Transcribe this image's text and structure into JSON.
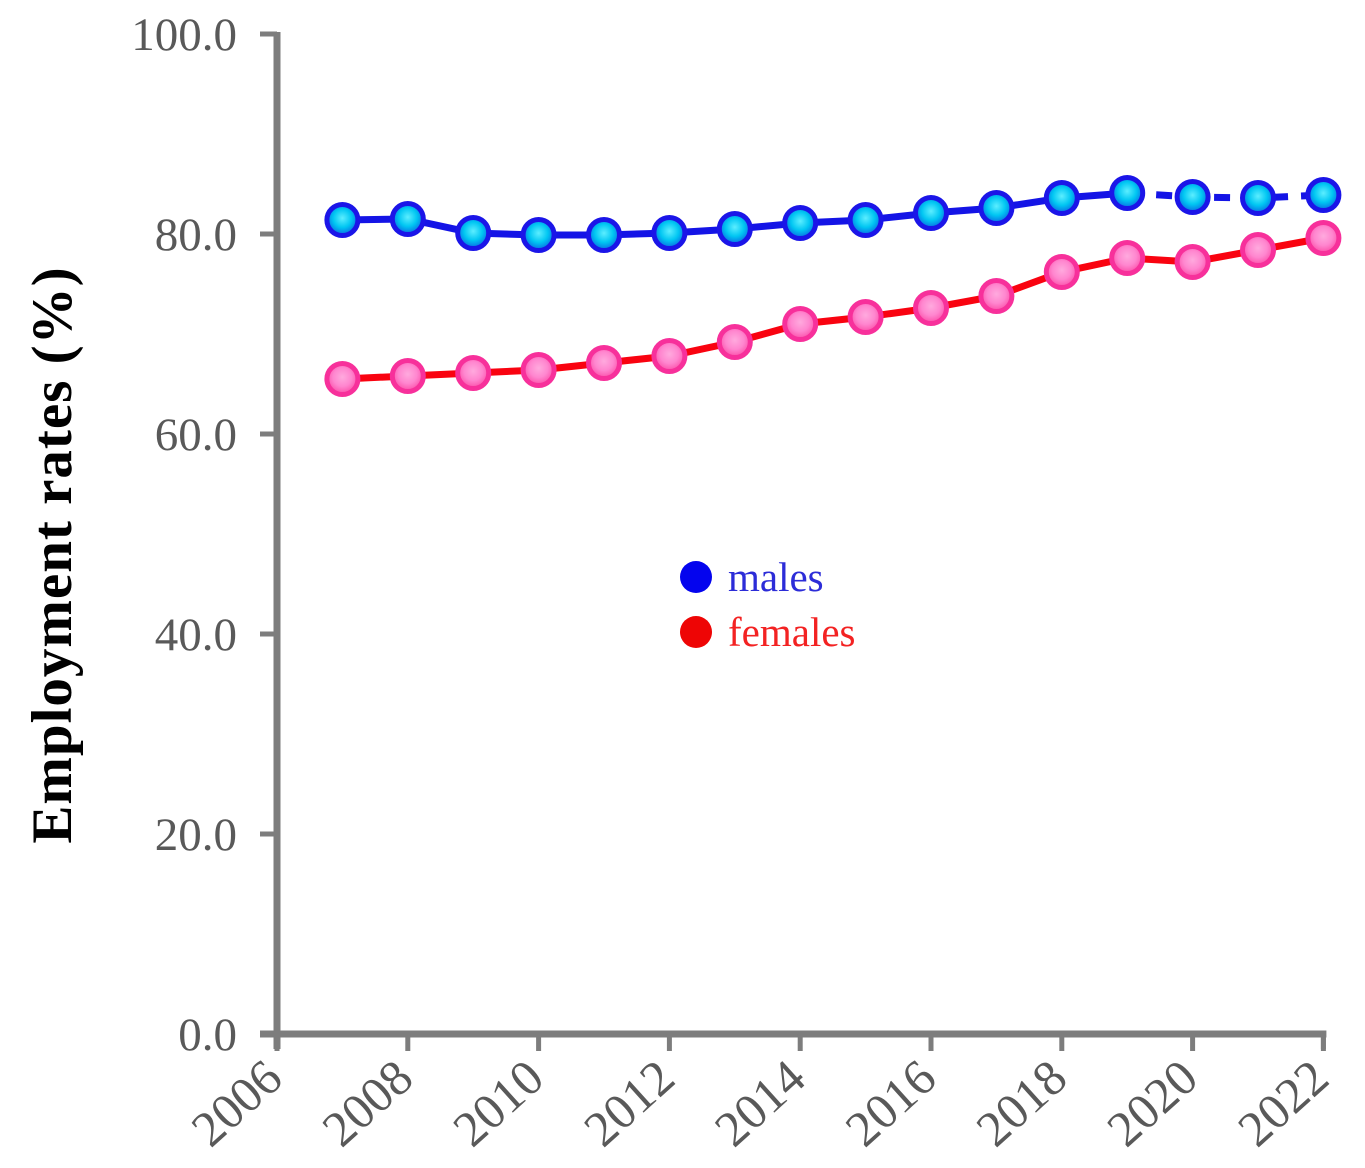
{
  "figure": {
    "background": "#ffffff"
  },
  "chart_data": {
    "type": "line",
    "title": "",
    "xlabel": "",
    "ylabel": "Employment rates (%)",
    "ylim": [
      0,
      100
    ],
    "grid": false,
    "axis_color": "#7d7d7d",
    "tick_label_color": "#595959",
    "x": [
      2007,
      2008,
      2009,
      2010,
      2011,
      2012,
      2013,
      2014,
      2015,
      2016,
      2017,
      2018,
      2019,
      2020,
      2021,
      2022
    ],
    "yticks": [
      {
        "value": 0,
        "label": "0.0"
      },
      {
        "value": 20,
        "label": "20.0"
      },
      {
        "value": 40,
        "label": "40.0"
      },
      {
        "value": 60,
        "label": "60.0"
      },
      {
        "value": 80,
        "label": "80.0"
      },
      {
        "value": 100,
        "label": "100.0"
      }
    ],
    "xticks": [
      {
        "value": 2006,
        "label": "2006"
      },
      {
        "value": 2008,
        "label": "2008"
      },
      {
        "value": 2010,
        "label": "2010"
      },
      {
        "value": 2012,
        "label": "2012"
      },
      {
        "value": 2014,
        "label": "2014"
      },
      {
        "value": 2016,
        "label": "2016"
      },
      {
        "value": 2018,
        "label": "2018"
      },
      {
        "value": 2020,
        "label": "2020"
      },
      {
        "value": 2022,
        "label": "2022"
      }
    ],
    "series": [
      {
        "name": "males",
        "line_color": "#1414e6",
        "marker_stroke": "#1b15e8",
        "marker_gradient": [
          "#5ceeff",
          "#00c6f2",
          "#0b4ede"
        ],
        "dash_from_year": 2019,
        "values": [
          81.4,
          81.5,
          80.1,
          79.9,
          79.9,
          80.1,
          80.5,
          81.1,
          81.4,
          82.1,
          82.6,
          83.6,
          84.1,
          83.7,
          83.6,
          83.9
        ]
      },
      {
        "name": "females",
        "line_color": "#f90310",
        "marker_stroke": "#f7309b",
        "marker_gradient": [
          "#ffaade",
          "#ff86cf",
          "#fa3d9c"
        ],
        "dash_from_year": null,
        "values": [
          65.5,
          65.8,
          66.1,
          66.4,
          67.1,
          67.8,
          69.2,
          71.0,
          71.7,
          72.6,
          73.8,
          76.2,
          77.6,
          77.2,
          78.4,
          79.6
        ]
      }
    ],
    "legend": {
      "position": "center",
      "items": [
        {
          "label": "males",
          "dot_color": "#0404ee",
          "text_color": "#2c2cd8"
        },
        {
          "label": "females",
          "dot_color": "#ee0505",
          "text_color": "#f32222"
        }
      ]
    }
  }
}
